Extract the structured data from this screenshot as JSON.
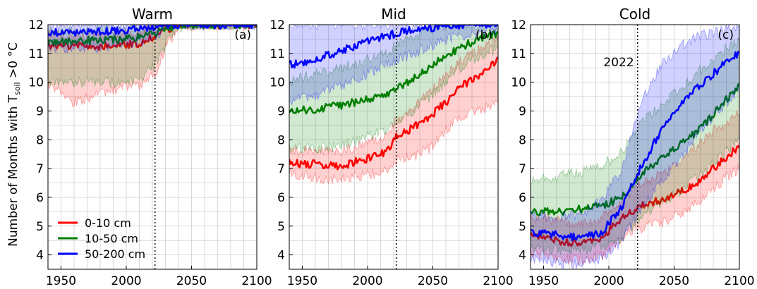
{
  "figure": {
    "ylabel": "Number of Months with T",
    "ylabel_sub": "soil",
    "ylabel_tail": " >0 °C",
    "year_marker_label": "2022"
  },
  "legend": [
    {
      "label": "0-10 cm",
      "color": "#ff0000"
    },
    {
      "label": "10-50 cm",
      "color": "#007f00"
    },
    {
      "label": "50-200 cm",
      "color": "#0000ff"
    }
  ],
  "chart_data": [
    {
      "type": "line",
      "title": "Warm",
      "panel_label": "(a)",
      "xlim": [
        1940,
        2100
      ],
      "ylim": [
        3.5,
        12
      ],
      "xticks": [
        1950,
        2000,
        2050,
        2100
      ],
      "yticks": [
        4,
        5,
        6,
        7,
        8,
        9,
        10,
        11,
        12
      ],
      "grid": true,
      "vline_x": 2022,
      "series": [
        {
          "name": "0-10 cm",
          "color": "#ff0000",
          "x": [
            1940,
            1960,
            1980,
            2000,
            2010,
            2022,
            2030,
            2040,
            2060,
            2080,
            2100
          ],
          "y": [
            11.25,
            11.25,
            11.25,
            11.3,
            11.35,
            11.6,
            11.8,
            12,
            12,
            12,
            12
          ],
          "lower": [
            9.9,
            9.3,
            9.6,
            9.8,
            9.9,
            10.3,
            11.2,
            11.9,
            12,
            12,
            12
          ],
          "upper": [
            11.7,
            11.6,
            11.6,
            11.7,
            11.8,
            11.9,
            12,
            12,
            12,
            12,
            12
          ]
        },
        {
          "name": "10-50 cm",
          "color": "#007f00",
          "x": [
            1940,
            1960,
            1980,
            2000,
            2010,
            2022,
            2030,
            2040,
            2060,
            2080,
            2100
          ],
          "y": [
            11.4,
            11.45,
            11.45,
            11.5,
            11.55,
            11.7,
            11.85,
            12,
            12,
            12,
            12
          ],
          "lower": [
            10.0,
            10.0,
            10.0,
            10.0,
            10.1,
            10.6,
            11.3,
            11.9,
            12,
            12,
            12
          ],
          "upper": [
            11.8,
            11.8,
            11.8,
            11.8,
            11.9,
            12,
            12,
            12,
            12,
            12,
            12
          ]
        },
        {
          "name": "50-200 cm",
          "color": "#0000ff",
          "x": [
            1940,
            1960,
            1980,
            2000,
            2010,
            2022,
            2030,
            2040,
            2060,
            2080,
            2100
          ],
          "y": [
            11.7,
            11.75,
            11.75,
            11.8,
            11.85,
            11.95,
            12,
            12,
            12,
            12,
            12
          ],
          "lower": [
            11.2,
            11.2,
            11.2,
            11.3,
            11.4,
            11.6,
            11.9,
            12,
            12,
            12,
            12
          ],
          "upper": [
            12,
            12,
            12,
            12,
            12,
            12,
            12,
            12,
            12,
            12,
            12
          ]
        }
      ]
    },
    {
      "type": "line",
      "title": "Mid",
      "panel_label": "(b)",
      "xlim": [
        1940,
        2100
      ],
      "ylim": [
        3.5,
        12
      ],
      "xticks": [
        1950,
        2000,
        2050,
        2100
      ],
      "yticks": [
        4,
        5,
        6,
        7,
        8,
        9,
        10,
        11,
        12
      ],
      "grid": true,
      "vline_x": 2022,
      "series": [
        {
          "name": "0-10 cm",
          "color": "#ff0000",
          "x": [
            1940,
            1960,
            1980,
            2000,
            2015,
            2022,
            2030,
            2040,
            2050,
            2060,
            2070,
            2080,
            2090,
            2100
          ],
          "y": [
            7.2,
            7.15,
            7.1,
            7.35,
            7.6,
            8.1,
            8.3,
            8.6,
            8.9,
            9.3,
            9.8,
            10.1,
            10.4,
            10.8
          ],
          "lower": [
            6.8,
            6.7,
            6.6,
            6.8,
            6.9,
            7.3,
            7.4,
            7.5,
            7.8,
            8.3,
            8.7,
            9.0,
            9.1,
            9.3
          ],
          "upper": [
            7.6,
            7.6,
            7.6,
            7.9,
            8.2,
            8.7,
            8.9,
            9.3,
            9.8,
            10.2,
            10.7,
            11.0,
            11.3,
            11.5
          ]
        },
        {
          "name": "10-50 cm",
          "color": "#007f00",
          "x": [
            1940,
            1960,
            1980,
            2000,
            2015,
            2022,
            2030,
            2040,
            2050,
            2060,
            2070,
            2080,
            2090,
            2100
          ],
          "y": [
            9.0,
            9.05,
            9.2,
            9.4,
            9.6,
            9.8,
            10.0,
            10.3,
            10.6,
            10.9,
            11.2,
            11.4,
            11.6,
            11.7
          ],
          "lower": [
            7.7,
            7.7,
            7.8,
            8.1,
            8.4,
            8.6,
            8.8,
            9.2,
            9.6,
            10.0,
            10.5,
            10.8,
            11.0,
            11.2
          ],
          "upper": [
            10.0,
            10.3,
            10.5,
            10.8,
            11.0,
            11.3,
            11.5,
            11.7,
            11.9,
            12,
            12,
            12,
            12,
            12
          ]
        },
        {
          "name": "50-200 cm",
          "color": "#0000ff",
          "x": [
            1940,
            1960,
            1980,
            2000,
            2015,
            2022,
            2030,
            2040,
            2050,
            2060,
            2070,
            2080,
            2090,
            2100
          ],
          "y": [
            10.6,
            10.8,
            11.1,
            11.4,
            11.6,
            11.7,
            11.8,
            11.85,
            11.9,
            11.95,
            12,
            12,
            12,
            12
          ],
          "lower": [
            9.4,
            9.5,
            9.9,
            10.3,
            10.6,
            10.8,
            10.9,
            11.1,
            11.3,
            11.5,
            11.6,
            11.7,
            11.8,
            11.8
          ],
          "upper": [
            12,
            12,
            12,
            12,
            12,
            12,
            12,
            12,
            12,
            12,
            12,
            12,
            12,
            12
          ]
        }
      ]
    },
    {
      "type": "line",
      "title": "Cold",
      "panel_label": "(c)",
      "xlim": [
        1940,
        2100
      ],
      "ylim": [
        3.5,
        12
      ],
      "xticks": [
        1950,
        2000,
        2050,
        2100
      ],
      "yticks": [
        4,
        5,
        6,
        7,
        8,
        9,
        10,
        11,
        12
      ],
      "grid": true,
      "vline_x": 2022,
      "series": [
        {
          "name": "0-10 cm",
          "color": "#ff0000",
          "x": [
            1940,
            1960,
            1980,
            1995,
            2010,
            2022,
            2030,
            2040,
            2050,
            2060,
            2070,
            2080,
            2090,
            2100
          ],
          "y": [
            4.7,
            4.5,
            4.4,
            4.6,
            5.3,
            5.6,
            5.8,
            5.9,
            6.1,
            6.3,
            6.6,
            7.0,
            7.4,
            7.8
          ],
          "lower": [
            4.1,
            3.9,
            3.8,
            4.0,
            4.6,
            4.9,
            5.0,
            5.1,
            5.3,
            5.6,
            5.9,
            6.3,
            6.7,
            7.0
          ],
          "upper": [
            5.3,
            5.2,
            5.1,
            5.3,
            5.9,
            6.4,
            6.6,
            6.8,
            7.1,
            7.5,
            7.9,
            8.3,
            8.6,
            8.9
          ]
        },
        {
          "name": "10-50 cm",
          "color": "#007f00",
          "x": [
            1940,
            1960,
            1980,
            1995,
            2010,
            2022,
            2030,
            2040,
            2050,
            2060,
            2070,
            2080,
            2090,
            2100
          ],
          "y": [
            5.5,
            5.5,
            5.6,
            5.7,
            6.0,
            6.6,
            7.0,
            7.4,
            7.7,
            8.0,
            8.4,
            8.9,
            9.4,
            9.9
          ],
          "lower": [
            4.2,
            4.2,
            4.2,
            4.3,
            4.6,
            5.2,
            5.5,
            5.8,
            6.1,
            6.4,
            6.8,
            7.2,
            7.6,
            8.0
          ],
          "upper": [
            6.6,
            6.7,
            6.9,
            7.1,
            7.6,
            8.4,
            8.8,
            9.2,
            9.6,
            10.0,
            10.4,
            10.8,
            11.2,
            11.5
          ]
        },
        {
          "name": "50-200 cm",
          "color": "#0000ff",
          "x": [
            1940,
            1960,
            1980,
            1995,
            2010,
            2022,
            2030,
            2040,
            2050,
            2060,
            2070,
            2080,
            2090,
            2100
          ],
          "y": [
            4.8,
            4.7,
            4.6,
            4.8,
            5.7,
            6.8,
            7.5,
            8.3,
            9.0,
            9.5,
            9.9,
            10.3,
            10.7,
            11.0
          ],
          "lower": [
            3.9,
            3.7,
            3.7,
            3.9,
            4.5,
            5.4,
            5.9,
            6.5,
            7.1,
            7.7,
            8.3,
            8.8,
            9.3,
            9.8
          ],
          "upper": [
            5.4,
            5.3,
            5.4,
            5.9,
            7.0,
            8.8,
            9.8,
            10.6,
            11.1,
            11.4,
            11.6,
            11.7,
            11.8,
            12
          ]
        }
      ]
    }
  ]
}
